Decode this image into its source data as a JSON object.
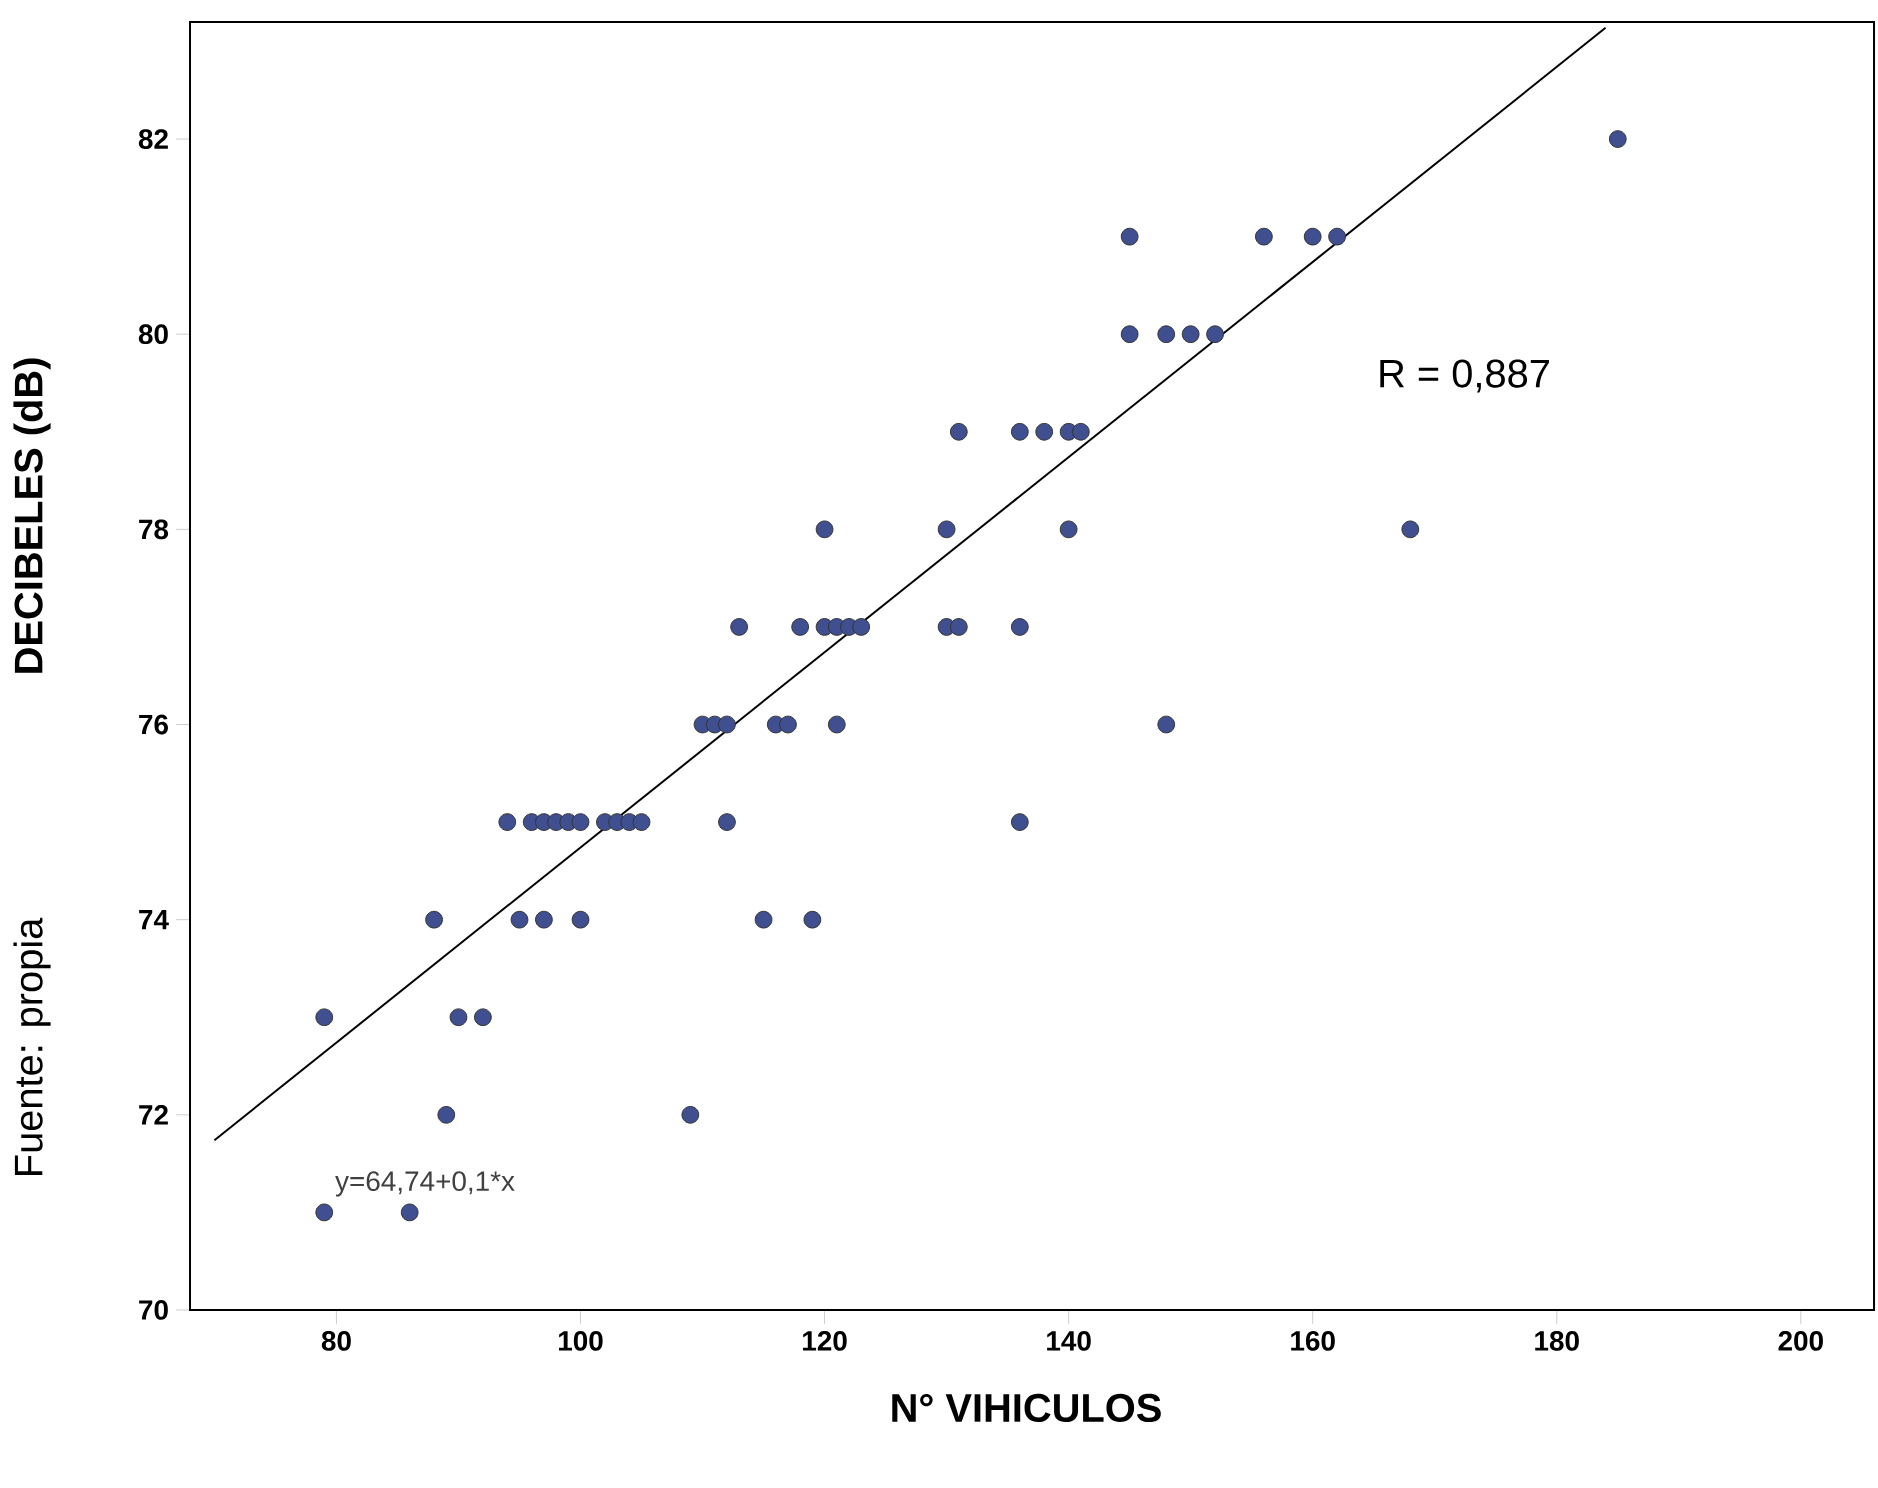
{
  "chart_data": {
    "type": "scatter",
    "xlabel": "N° VIHICULOS",
    "ylabel": "DECIBELES (dB)",
    "annotations": [
      "R = 0,887",
      "y=64,74+0,1*x",
      "Fuente: propia"
    ],
    "xlim": [
      68,
      206
    ],
    "xticks": [
      80,
      100,
      120,
      140,
      160,
      180,
      200
    ],
    "ylim": [
      70,
      83.2
    ],
    "yticks": [
      70,
      72,
      74,
      76,
      78,
      80,
      82
    ],
    "grid": false,
    "series": [
      {
        "marker": "circle",
        "color": "#3f4f8f",
        "x": [
          79,
          86,
          89,
          109,
          79,
          90,
          92,
          88,
          95,
          97,
          100,
          115,
          119,
          94,
          96,
          97,
          98,
          99,
          100,
          102,
          103,
          104,
          105,
          112,
          136,
          110,
          111,
          112,
          116,
          117,
          121,
          148,
          113,
          118,
          120,
          121,
          122,
          123,
          130,
          131,
          136,
          120,
          130,
          140,
          168,
          131,
          136,
          138,
          140,
          141,
          145,
          148,
          150,
          152,
          145,
          156,
          160,
          162,
          185
        ],
        "values": [
          71,
          71,
          72,
          72,
          73,
          73,
          73,
          74,
          74,
          74,
          74,
          74,
          74,
          75,
          75,
          75,
          75,
          75,
          75,
          75,
          75,
          75,
          75,
          75,
          75,
          76,
          76,
          76,
          76,
          76,
          76,
          76,
          77,
          77,
          77,
          77,
          77,
          77,
          77,
          77,
          77,
          78,
          78,
          78,
          78,
          79,
          79,
          79,
          79,
          79,
          80,
          80,
          80,
          80,
          81,
          81,
          81,
          81,
          82
        ]
      },
      {
        "type": "line",
        "marker": "none",
        "color": "#000000",
        "x": [
          70,
          184
        ],
        "values": [
          71.74,
          83.14
        ]
      }
    ]
  }
}
